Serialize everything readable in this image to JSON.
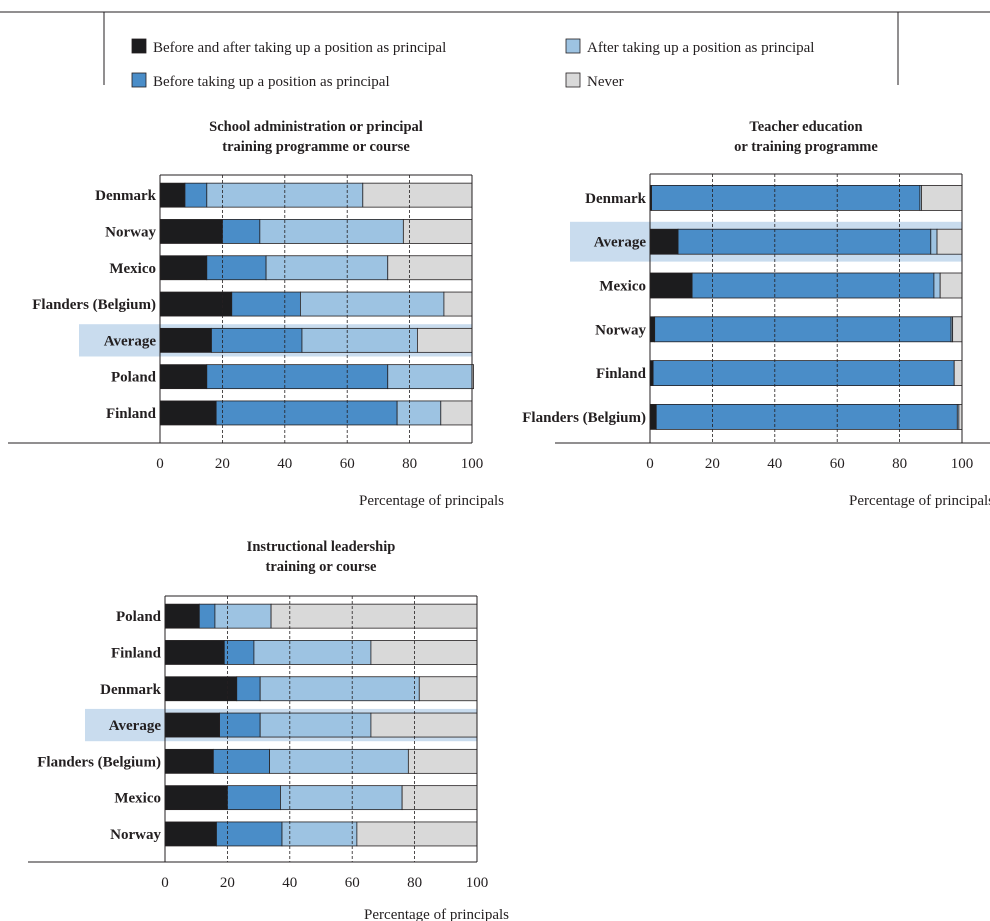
{
  "legend": {
    "entries": [
      {
        "label": "Before and after taking up a position as principal",
        "color": "#1c1c1e"
      },
      {
        "label": "After taking up a position as principal",
        "color": "#9dc3e2"
      },
      {
        "label": "Before taking up a position as principal",
        "color": "#4a8dc8"
      },
      {
        "label": "Never",
        "color": "#d9d9d9"
      }
    ]
  },
  "colors": {
    "before_and_after": "#1c1c1e",
    "before": "#4a8dc8",
    "after": "#9dc3e2",
    "never": "#d9d9d9",
    "average_highlight": "#c9dcee",
    "line": "#231f20"
  },
  "chart_data": [
    {
      "type": "bar",
      "orientation": "horizontal",
      "stacked": true,
      "title": "School administration or principal training programme or course",
      "title_lines": [
        "School administration or principal",
        "training programme or course"
      ],
      "xlabel": "Percentage of principals",
      "xlim": [
        0,
        100
      ],
      "xticks": [
        "0",
        "20",
        "40",
        "60",
        "80",
        "100"
      ],
      "grid": "dashed-vertical",
      "highlight": "Average",
      "categories": [
        "Denmark",
        "Norway",
        "Mexico",
        "Flanders (Belgium)",
        "Average",
        "Poland",
        "Finland"
      ],
      "series": [
        {
          "name": "Before and after taking up a position as principal",
          "values": [
            8,
            20,
            15,
            23,
            16.5,
            15,
            18
          ]
        },
        {
          "name": "Before taking up a position as principal",
          "values": [
            7,
            12,
            19,
            22,
            29,
            58,
            58
          ]
        },
        {
          "name": "After taking up a position as principal",
          "values": [
            50,
            46,
            39,
            46,
            37,
            27,
            14
          ]
        },
        {
          "name": "Never",
          "values": [
            35,
            22,
            27,
            9,
            17.5,
            0.5,
            10
          ]
        }
      ]
    },
    {
      "type": "bar",
      "orientation": "horizontal",
      "stacked": true,
      "title": "Teacher education or training programme",
      "title_lines": [
        "Teacher education",
        "or training programme"
      ],
      "xlabel": "Percentage of principals",
      "xlim": [
        0,
        100
      ],
      "xticks": [
        "0",
        "20",
        "40",
        "60",
        "80",
        "100"
      ],
      "grid": "dashed-vertical",
      "highlight": "Average",
      "categories": [
        "Denmark",
        "Average",
        "Mexico",
        "Norway",
        "Finland",
        "Flanders (Belgium)"
      ],
      "series": [
        {
          "name": "Before and after taking up a position as principal",
          "values": [
            0.5,
            9,
            13.5,
            1.5,
            1,
            2
          ]
        },
        {
          "name": "Before taking up a position as principal",
          "values": [
            86,
            81,
            77.5,
            95,
            96.5,
            96.5
          ]
        },
        {
          "name": "After taking up a position as principal",
          "values": [
            0.5,
            2,
            2,
            0.5,
            0,
            0.5
          ]
        },
        {
          "name": "Never",
          "values": [
            13,
            8,
            7,
            3,
            2.5,
            1
          ]
        }
      ]
    },
    {
      "type": "bar",
      "orientation": "horizontal",
      "stacked": true,
      "title": "Instructional leadership training or course",
      "title_lines": [
        "Instructional leadership",
        "training or course"
      ],
      "xlabel": "Percentage of principals",
      "xlim": [
        0,
        100
      ],
      "xticks": [
        "0",
        "20",
        "40",
        "60",
        "80",
        "100"
      ],
      "grid": "dashed-vertical",
      "highlight": "Average",
      "categories": [
        "Poland",
        "Finland",
        "Denmark",
        "Average",
        "Flanders (Belgium)",
        "Mexico",
        "Norway"
      ],
      "series": [
        {
          "name": "Before and after taking up a position as principal",
          "values": [
            11,
            19,
            23,
            17.5,
            15.5,
            20,
            16.5
          ]
        },
        {
          "name": "Before taking up a position as principal",
          "values": [
            5,
            9.5,
            7.5,
            13,
            18,
            17,
            21
          ]
        },
        {
          "name": "After taking up a position as principal",
          "values": [
            18,
            37.5,
            51,
            35.5,
            44.5,
            39,
            24
          ]
        },
        {
          "name": "Never",
          "values": [
            66,
            34,
            18.5,
            34,
            22,
            24,
            38.5
          ]
        }
      ]
    }
  ]
}
